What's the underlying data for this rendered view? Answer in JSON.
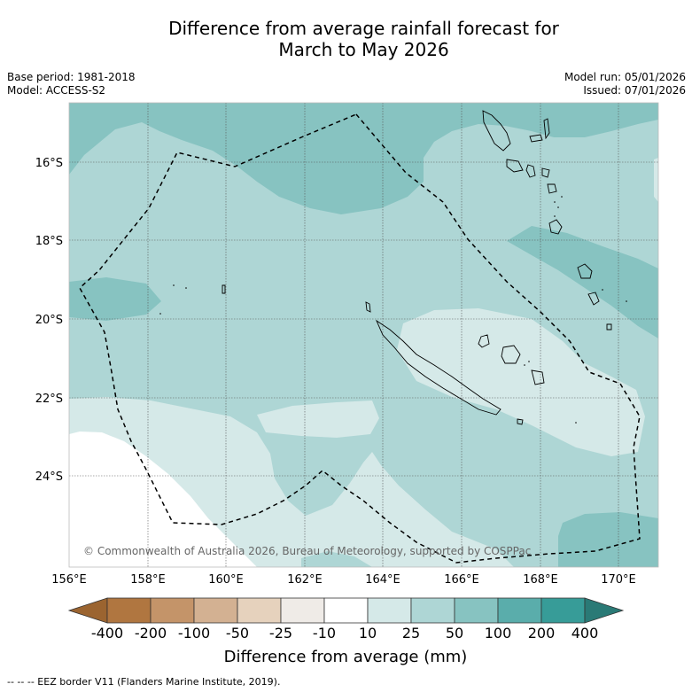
{
  "title": {
    "line1": "Difference from average rainfall forecast for",
    "line2": "March to May 2026"
  },
  "meta": {
    "base_period": "Base period: 1981-2018",
    "model": "Model: ACCESS-S2",
    "model_run": "Model run: 05/01/2026",
    "issued": "Issued: 07/01/2026"
  },
  "map": {
    "region": "New Caledonia",
    "credit": "© Commonwealth of Australia 2026, Bureau of Meteorology, supported by COSPPac",
    "lon_labels": [
      "156°E",
      "158°E",
      "160°E",
      "162°E",
      "164°E",
      "166°E",
      "168°E",
      "170°E"
    ],
    "lat_labels": [
      "16°S",
      "18°S",
      "20°S",
      "22°S",
      "24°S"
    ]
  },
  "colorbar": {
    "title": "Difference from average (mm)",
    "tick_labels": [
      "-400",
      "-200",
      "-100",
      "-50",
      "-25",
      "-10",
      "10",
      "25",
      "50",
      "100",
      "200",
      "400"
    ],
    "colors": [
      "#9b6430",
      "#b07640",
      "#c49469",
      "#d3b192",
      "#e6d2bd",
      "#efebe7",
      "#ffffff",
      "#d5e9e8",
      "#aed6d5",
      "#87c3c1",
      "#5aadab",
      "#379c98",
      "#2a7a76"
    ]
  },
  "legend": {
    "eez": "-- -- -- EEZ border V11 (Flanders Marine Institute, 2019)."
  }
}
